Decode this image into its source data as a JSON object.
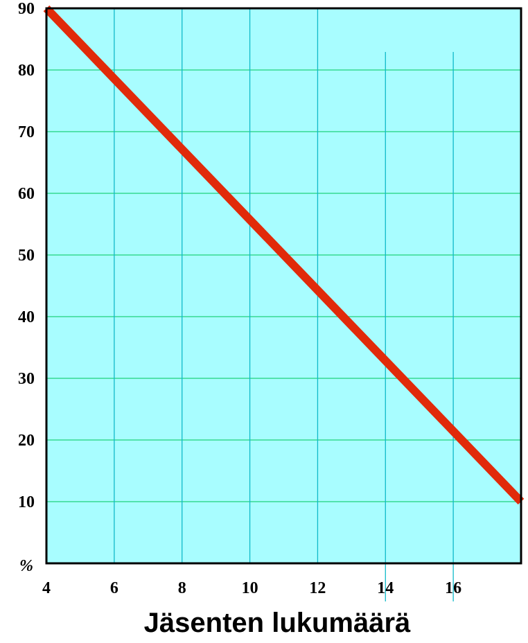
{
  "chart_data": {
    "type": "line",
    "title": "",
    "xlabel": "Jäsenten lukumäärä",
    "ylabel": "",
    "y_unit_label": "%",
    "xlim": [
      4,
      18
    ],
    "ylim": [
      0,
      90
    ],
    "x_ticks": [
      4,
      6,
      8,
      10,
      12,
      14,
      16
    ],
    "y_ticks": [
      10,
      20,
      30,
      40,
      50,
      60,
      70,
      80,
      90
    ],
    "grid": true,
    "series": [
      {
        "x": [
          4,
          18
        ],
        "y": [
          90,
          10
        ]
      }
    ],
    "colors": {
      "plot_background": "#a8fdff",
      "horizontal_grid": "#1fd17a",
      "vertical_grid": "#10b9c9",
      "line": "#e12a0a",
      "frame": "#000000"
    }
  }
}
